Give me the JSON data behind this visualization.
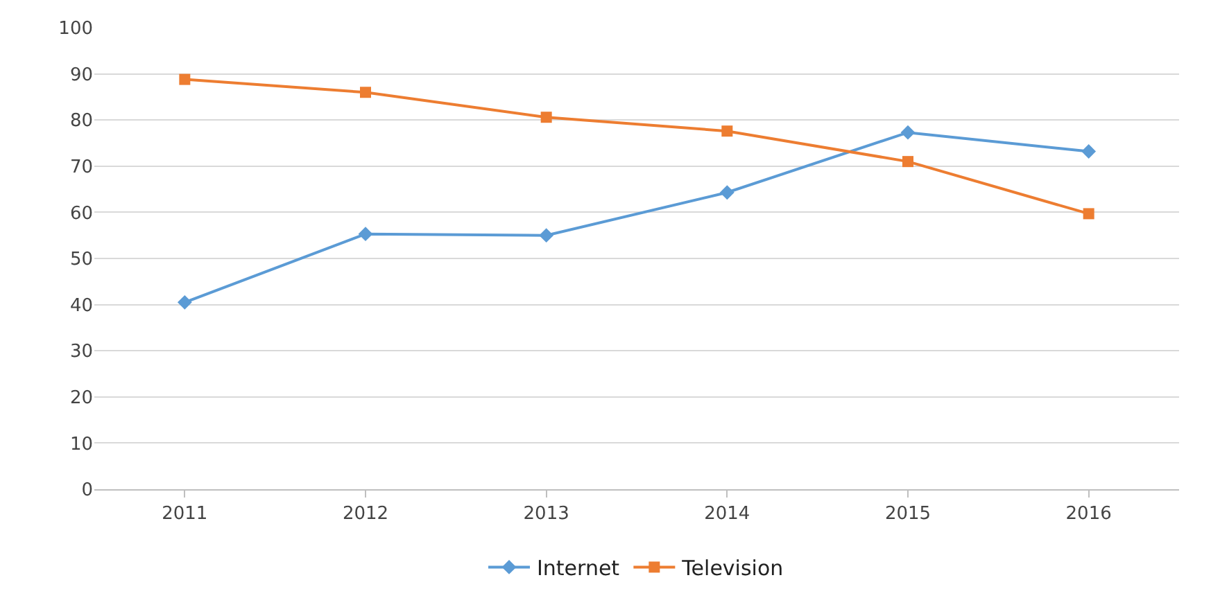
{
  "chart_data": {
    "type": "line",
    "categories": [
      "2011",
      "2012",
      "2013",
      "2014",
      "2015",
      "2016"
    ],
    "series": [
      {
        "name": "Internet",
        "color": "#5b9bd5",
        "marker": "diamond",
        "values": [
          40.5,
          55.3,
          55,
          64.3,
          77.3,
          73.2
        ]
      },
      {
        "name": "Television",
        "color": "#ed7d31",
        "marker": "square",
        "values": [
          88.8,
          86,
          80.6,
          77.6,
          71,
          59.7
        ]
      }
    ],
    "ylim": [
      0,
      100
    ],
    "yticks": [
      0,
      10,
      20,
      30,
      40,
      50,
      60,
      70,
      80,
      90,
      100
    ],
    "grid": "y",
    "legend": "bottom",
    "line_style": "solid"
  }
}
